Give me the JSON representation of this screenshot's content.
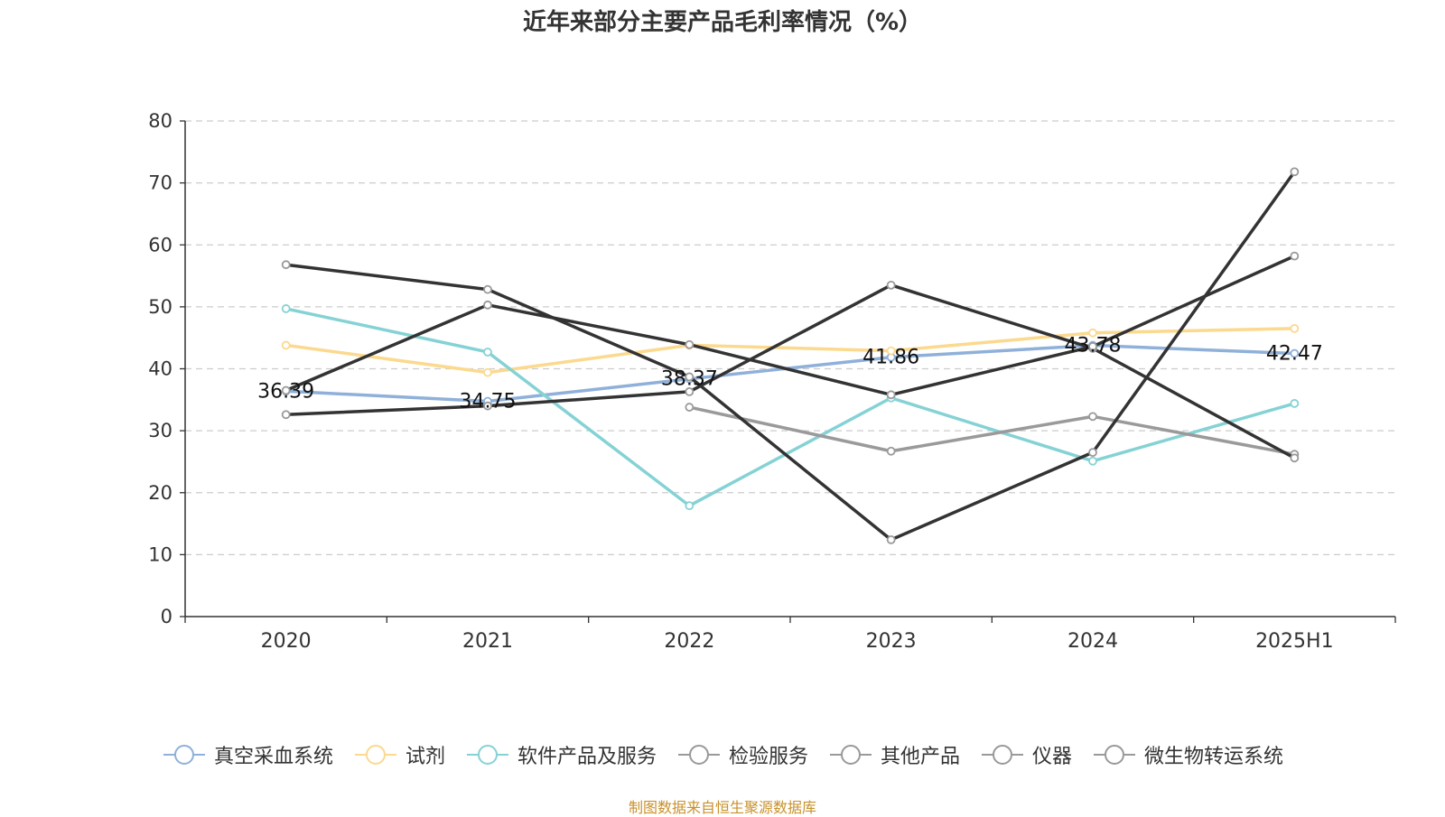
{
  "chart_data": {
    "type": "line",
    "title": "近年来部分主要产品毛利率情况（%）",
    "xlabel": "",
    "ylabel": "",
    "categories": [
      "2020",
      "2021",
      "2022",
      "2023",
      "2024",
      "2025H1"
    ],
    "ylim": [
      0,
      80
    ],
    "yticks": [
      0,
      10,
      20,
      30,
      40,
      50,
      60,
      70,
      80
    ],
    "grid": true,
    "legend_position": "bottom",
    "series": [
      {
        "name": "真空采血系统",
        "color": "#8fb0d9",
        "values": [
          36.39,
          34.75,
          38.37,
          41.86,
          43.78,
          42.47
        ],
        "labels": [
          "36.39",
          "34.75",
          "38.37",
          "41.86",
          "43.78",
          "42.47"
        ]
      },
      {
        "name": "试剂",
        "color": "#fbd98e",
        "values": [
          43.8,
          39.4,
          43.8,
          42.9,
          45.8,
          46.5
        ]
      },
      {
        "name": "软件产品及服务",
        "color": "#85d2d5",
        "values": [
          49.7,
          42.7,
          17.9,
          35.3,
          25.1,
          34.4
        ]
      },
      {
        "name": "检验服务",
        "color": "#9a9a9a",
        "values": [
          null,
          null,
          33.8,
          26.7,
          32.3,
          26.2
        ]
      },
      {
        "name": "其他产品",
        "color": "#333333",
        "values": [
          56.8,
          52.8,
          38.7,
          12.4,
          26.5,
          71.8
        ]
      },
      {
        "name": "仪器",
        "color": "#333333",
        "values": [
          32.6,
          34.0,
          36.3,
          53.5,
          43.3,
          25.6
        ]
      },
      {
        "name": "微生物转运系统",
        "color": "#333333",
        "values": [
          36.5,
          50.3,
          43.9,
          35.8,
          43.6,
          58.2
        ]
      }
    ],
    "legend_icon_color": "#999999"
  },
  "source_note": "制图数据来自恒生聚源数据库"
}
